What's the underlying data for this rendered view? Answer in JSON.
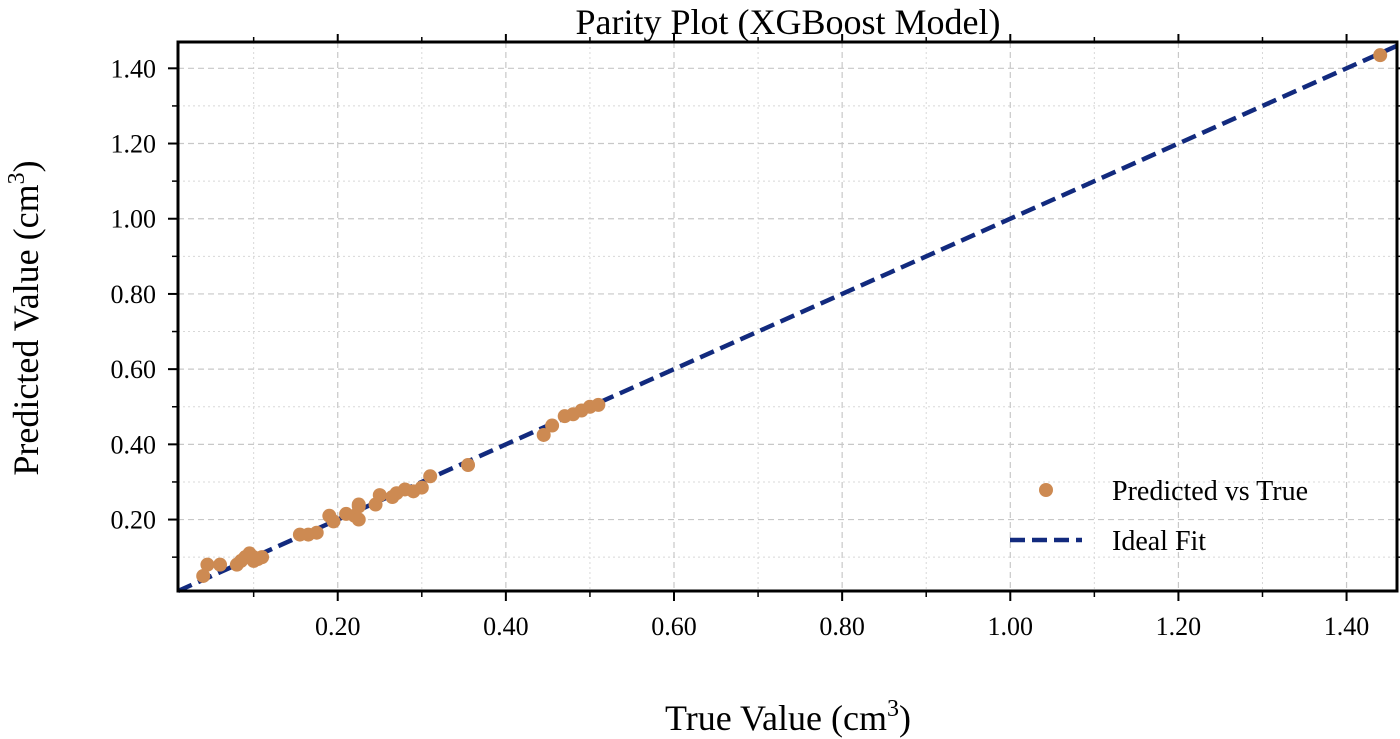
{
  "chart_data": {
    "type": "scatter",
    "title": "Parity Plot (XGBoost Model)",
    "xlabel": "True Value (cm",
    "xlabel_sup": "3",
    "xlabel_end": ")",
    "ylabel": "Predicted Value (cm",
    "ylabel_sup": "3",
    "ylabel_end": ")",
    "xlim": [
      0.01,
      1.46
    ],
    "ylim": [
      0.01,
      1.47
    ],
    "x_ticks": [
      0.2,
      0.4,
      0.6,
      0.8,
      1.0,
      1.2,
      1.4
    ],
    "y_ticks": [
      0.2,
      0.4,
      0.6,
      0.8,
      1.0,
      1.2,
      1.4
    ],
    "x_tick_labels": [
      "0.20",
      "0.40",
      "0.60",
      "0.80",
      "1.00",
      "1.20",
      "1.40"
    ],
    "y_tick_labels": [
      "0.20",
      "0.40",
      "0.60",
      "0.80",
      "1.00",
      "1.20",
      "1.40"
    ],
    "minor_x_ticks": [
      0.1,
      0.3,
      0.5,
      0.7,
      0.9,
      1.1,
      1.3
    ],
    "minor_y_ticks": [
      0.1,
      0.3,
      0.5,
      0.7,
      0.9,
      1.1,
      1.3
    ],
    "grid": true,
    "legend_position": "bottom-right",
    "series": [
      {
        "name": "Predicted vs True",
        "kind": "scatter",
        "color": "#cd8a52",
        "points": [
          [
            0.04,
            0.05
          ],
          [
            0.045,
            0.08
          ],
          [
            0.06,
            0.08
          ],
          [
            0.08,
            0.08
          ],
          [
            0.085,
            0.09
          ],
          [
            0.09,
            0.1
          ],
          [
            0.095,
            0.11
          ],
          [
            0.1,
            0.1
          ],
          [
            0.1,
            0.09
          ],
          [
            0.105,
            0.095
          ],
          [
            0.11,
            0.1
          ],
          [
            0.155,
            0.16
          ],
          [
            0.165,
            0.16
          ],
          [
            0.175,
            0.165
          ],
          [
            0.19,
            0.21
          ],
          [
            0.195,
            0.195
          ],
          [
            0.21,
            0.215
          ],
          [
            0.22,
            0.21
          ],
          [
            0.225,
            0.235
          ],
          [
            0.225,
            0.24
          ],
          [
            0.225,
            0.2
          ],
          [
            0.245,
            0.24
          ],
          [
            0.25,
            0.265
          ],
          [
            0.265,
            0.26
          ],
          [
            0.27,
            0.27
          ],
          [
            0.28,
            0.28
          ],
          [
            0.29,
            0.275
          ],
          [
            0.3,
            0.285
          ],
          [
            0.31,
            0.315
          ],
          [
            0.355,
            0.345
          ],
          [
            0.445,
            0.425
          ],
          [
            0.455,
            0.45
          ],
          [
            0.47,
            0.475
          ],
          [
            0.48,
            0.48
          ],
          [
            0.49,
            0.49
          ],
          [
            0.5,
            0.5
          ],
          [
            0.51,
            0.505
          ],
          [
            1.44,
            1.435
          ]
        ]
      },
      {
        "name": "Ideal Fit",
        "kind": "line",
        "color": "#122a7e",
        "line": [
          [
            0.01,
            0.01
          ],
          [
            1.46,
            1.46
          ]
        ]
      }
    ]
  }
}
